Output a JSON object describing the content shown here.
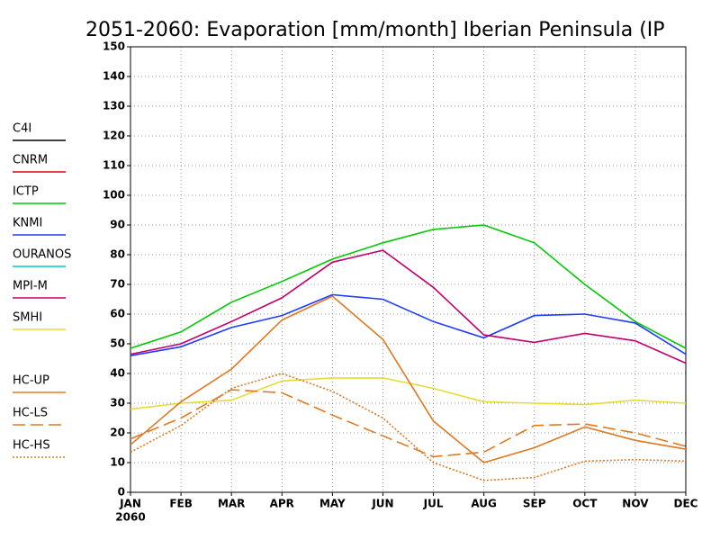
{
  "chart_data": {
    "type": "line",
    "title": "2051-2060: Evaporation [mm/month] Iberian Peninsula (IP",
    "categories": [
      "JAN",
      "FEB",
      "MAR",
      "APR",
      "MAY",
      "JUN",
      "JUL",
      "AUG",
      "SEP",
      "OCT",
      "NOV",
      "DEC"
    ],
    "x_sublabel": "2060",
    "ylim": [
      0,
      150
    ],
    "yticks": [
      0,
      10,
      20,
      30,
      40,
      50,
      60,
      70,
      80,
      90,
      100,
      110,
      120,
      130,
      140,
      150
    ],
    "grid": true,
    "series": [
      {
        "name": "C4I",
        "color": "#000000",
        "dash": "solid",
        "values": [
          null,
          null,
          null,
          null,
          null,
          null,
          null,
          null,
          null,
          null,
          null,
          null
        ]
      },
      {
        "name": "CNRM",
        "color": "#e00000",
        "dash": "solid",
        "values": [
          null,
          null,
          null,
          null,
          null,
          null,
          null,
          null,
          null,
          null,
          null,
          null
        ]
      },
      {
        "name": "ICTP",
        "color": "#00c800",
        "dash": "solid",
        "values": [
          48.5,
          54,
          64,
          71,
          78.5,
          84,
          88.5,
          90,
          84,
          70,
          57.5,
          48.5
        ]
      },
      {
        "name": "KNMI",
        "color": "#1e3cff",
        "dash": "solid",
        "values": [
          46,
          49,
          55.5,
          59.5,
          66.5,
          65,
          57.5,
          52,
          59.5,
          60,
          57,
          46.5
        ]
      },
      {
        "name": "OURANOS",
        "color": "#00c8c8",
        "dash": "solid",
        "values": [
          null,
          null,
          null,
          null,
          null,
          null,
          null,
          null,
          null,
          null,
          null,
          null
        ]
      },
      {
        "name": "MPI-M",
        "color": "#c0006e",
        "dash": "solid",
        "values": [
          46.5,
          50,
          57.5,
          65.5,
          77.5,
          81.5,
          69,
          53,
          50.5,
          53.5,
          51,
          43.5
        ]
      },
      {
        "name": "SMHI",
        "color": "#e6dc32",
        "dash": "solid",
        "values": [
          28,
          30,
          31,
          37.5,
          38.5,
          38.5,
          35,
          30.5,
          30,
          29.5,
          31,
          30
        ]
      },
      {
        "name": "HC-UP",
        "color": "#e07820",
        "dash": "solid",
        "values": [
          16,
          30.5,
          41.5,
          58,
          66,
          51.5,
          24,
          10,
          15,
          22,
          17.5,
          14.5
        ]
      },
      {
        "name": "HC-LS",
        "color": "#e07820",
        "dash": "dashed",
        "values": [
          18,
          25,
          34.5,
          33.5,
          26,
          19,
          12,
          13.5,
          22.5,
          23,
          20,
          15.5
        ]
      },
      {
        "name": "HC-HS",
        "color": "#e07820",
        "dash": "dotted",
        "values": [
          13.5,
          22.5,
          35,
          40,
          34,
          25,
          10,
          4,
          5,
          10.5,
          11,
          10.5
        ]
      }
    ]
  }
}
